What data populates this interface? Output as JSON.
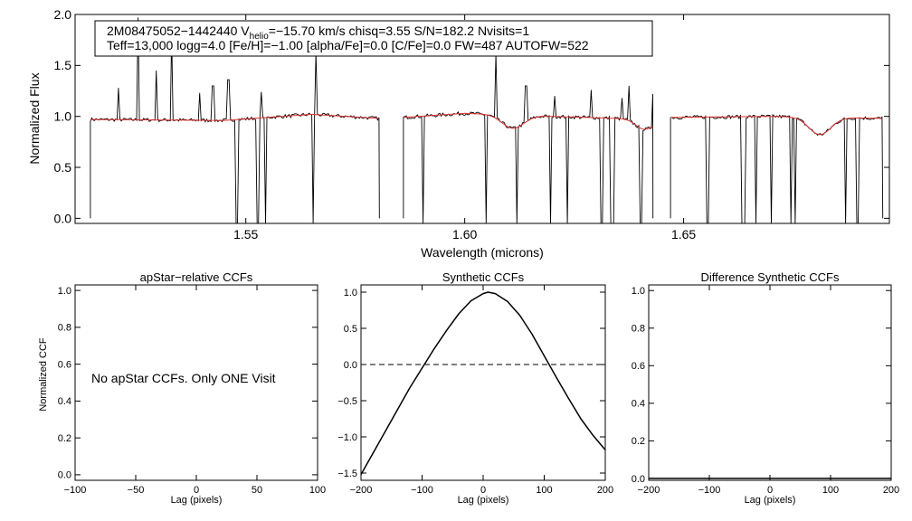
{
  "chart_data": [
    {
      "type": "line",
      "id": "spectrum",
      "xlabel": "Wavelength (microns)",
      "ylabel": "Normalized Flux",
      "xlim": [
        1.511,
        1.697
      ],
      "ylim": [
        -0.05,
        2.0
      ],
      "xticks": [
        1.55,
        1.6,
        1.65
      ],
      "xtick_labels": [
        "1.55",
        "1.60",
        "1.65"
      ],
      "yticks": [
        0.0,
        0.5,
        1.0,
        1.5,
        2.0
      ],
      "ytick_labels": [
        "0.0",
        "0.5",
        "1.0",
        "1.5",
        "2.0"
      ],
      "annotation": {
        "line1_a": "2M08475052−1442440  V",
        "line1_sub": "helio",
        "line1_b": "=−15.70 km/s  chisq=3.55  S/N=182.2  Nvisits=1",
        "line2": "Teff=13,000 logg=4.0 [Fe/H]=−1.00 [alpha/Fe]=0.0 [C/Fe]=0.0 FW=487 AUTOFW=522"
      },
      "detector_ranges": [
        [
          1.5145,
          1.5805
        ],
        [
          1.586,
          1.643
        ],
        [
          1.647,
          1.6955
        ]
      ],
      "model_lines": [
        {
          "center": 1.611,
          "depth": 0.13,
          "width": 0.0025
        },
        {
          "center": 1.6411,
          "depth": 0.1,
          "width": 0.002
        },
        {
          "center": 1.6811,
          "depth": 0.17,
          "width": 0.0025
        }
      ],
      "hump": [
        [
          1.5145,
          0.97
        ],
        [
          1.545,
          0.96
        ],
        [
          1.565,
          1.02
        ],
        [
          1.5805,
          0.98
        ],
        [
          1.586,
          0.99
        ],
        [
          1.6,
          1.03
        ],
        [
          1.62,
          1.0
        ],
        [
          1.643,
          0.97
        ],
        [
          1.647,
          0.99
        ],
        [
          1.67,
          1.0
        ],
        [
          1.6955,
          0.98
        ]
      ],
      "emission_spikes": [
        [
          1.521,
          1.28
        ],
        [
          1.5255,
          1.97
        ],
        [
          1.5295,
          1.45
        ],
        [
          1.533,
          1.8
        ],
        [
          1.5395,
          1.23
        ],
        [
          1.5425,
          1.3
        ],
        [
          1.546,
          1.36
        ],
        [
          1.5535,
          1.24
        ],
        [
          1.5655,
          1.45
        ],
        [
          1.566,
          1.63
        ],
        [
          1.607,
          1.62
        ],
        [
          1.614,
          1.3
        ],
        [
          1.6205,
          1.2
        ],
        [
          1.6235,
          1.22
        ],
        [
          1.629,
          1.26
        ],
        [
          1.636,
          1.18
        ],
        [
          1.6375,
          1.3
        ],
        [
          1.643,
          1.22
        ]
      ],
      "absorption_drops": [
        1.5477,
        1.5482,
        1.5525,
        1.553,
        1.5545,
        1.5655,
        1.5905,
        1.605,
        1.612,
        1.6195,
        1.6235,
        1.631,
        1.6315,
        1.6335,
        1.634,
        1.64,
        1.6405,
        1.6555,
        1.6635,
        1.664,
        1.6665,
        1.67,
        1.6745,
        1.6755,
        1.687,
        1.6895,
        1.69
      ],
      "series": [
        {
          "name": "observed",
          "color": "#000000"
        },
        {
          "name": "synthetic",
          "color": "#e03030"
        }
      ]
    },
    {
      "type": "line",
      "id": "apstar-ccf",
      "title": "apStar−relative CCFs",
      "xlabel": "Lag (pixels)",
      "ylabel": "Normalized CCF",
      "xlim": [
        -100,
        100
      ],
      "ylim": [
        -0.03,
        1.03
      ],
      "xticks": [
        -100,
        -50,
        0,
        50,
        100
      ],
      "xtick_labels": [
        "−100",
        "−50",
        "0",
        "50",
        "100"
      ],
      "yticks": [
        0.0,
        0.2,
        0.4,
        0.6,
        0.8,
        1.0
      ],
      "ytick_labels": [
        "0.0",
        "0.2",
        "0.4",
        "0.6",
        "0.8",
        "1.0"
      ],
      "message": "No apStar CCFs.  Only ONE Visit",
      "series": []
    },
    {
      "type": "line",
      "id": "synthetic-ccf",
      "title": "Synthetic CCFs",
      "xlabel": "Lag (pixels)",
      "xlim": [
        -200,
        200
      ],
      "ylim": [
        -1.6,
        1.1
      ],
      "xticks": [
        -200,
        -100,
        0,
        100,
        200
      ],
      "xtick_labels": [
        "−200",
        "−100",
        "0",
        "100",
        "200"
      ],
      "yticks": [
        -1.5,
        -1.0,
        -0.5,
        0.0,
        0.5,
        1.0
      ],
      "ytick_labels": [
        "−1.5",
        "−1.0",
        "−0.5",
        "0.0",
        "0.5",
        "1.0"
      ],
      "zero_line": 0.0,
      "series": [
        {
          "name": "synthetic-ccf",
          "color": "#000000",
          "x": [
            -200,
            -180,
            -160,
            -140,
            -120,
            -100,
            -80,
            -60,
            -40,
            -20,
            0,
            8,
            20,
            40,
            60,
            80,
            100,
            120,
            140,
            160,
            180,
            200
          ],
          "y": [
            -1.52,
            -1.22,
            -0.92,
            -0.62,
            -0.32,
            -0.05,
            0.22,
            0.47,
            0.7,
            0.88,
            0.98,
            1.0,
            0.98,
            0.87,
            0.68,
            0.42,
            0.12,
            -0.18,
            -0.47,
            -0.75,
            -0.98,
            -1.18
          ]
        }
      ]
    },
    {
      "type": "line",
      "id": "difference-ccf",
      "title": "Difference Synthetic CCFs",
      "xlabel": "Lag (pixels)",
      "xlim": [
        -200,
        200
      ],
      "ylim": [
        -0.01,
        1.03
      ],
      "xticks": [
        -200,
        -100,
        0,
        100,
        200
      ],
      "xtick_labels": [
        "−200",
        "−100",
        "0",
        "100",
        "200"
      ],
      "yticks": [
        0.0,
        0.2,
        0.4,
        0.6,
        0.8,
        1.0
      ],
      "ytick_labels": [
        "0.0",
        "0.2",
        "0.4",
        "0.6",
        "0.8",
        "1.0"
      ],
      "series": [
        {
          "name": "difference-ccf",
          "color": "#000000",
          "x": [
            -200,
            200
          ],
          "y": [
            0.0,
            0.0
          ]
        }
      ]
    }
  ]
}
